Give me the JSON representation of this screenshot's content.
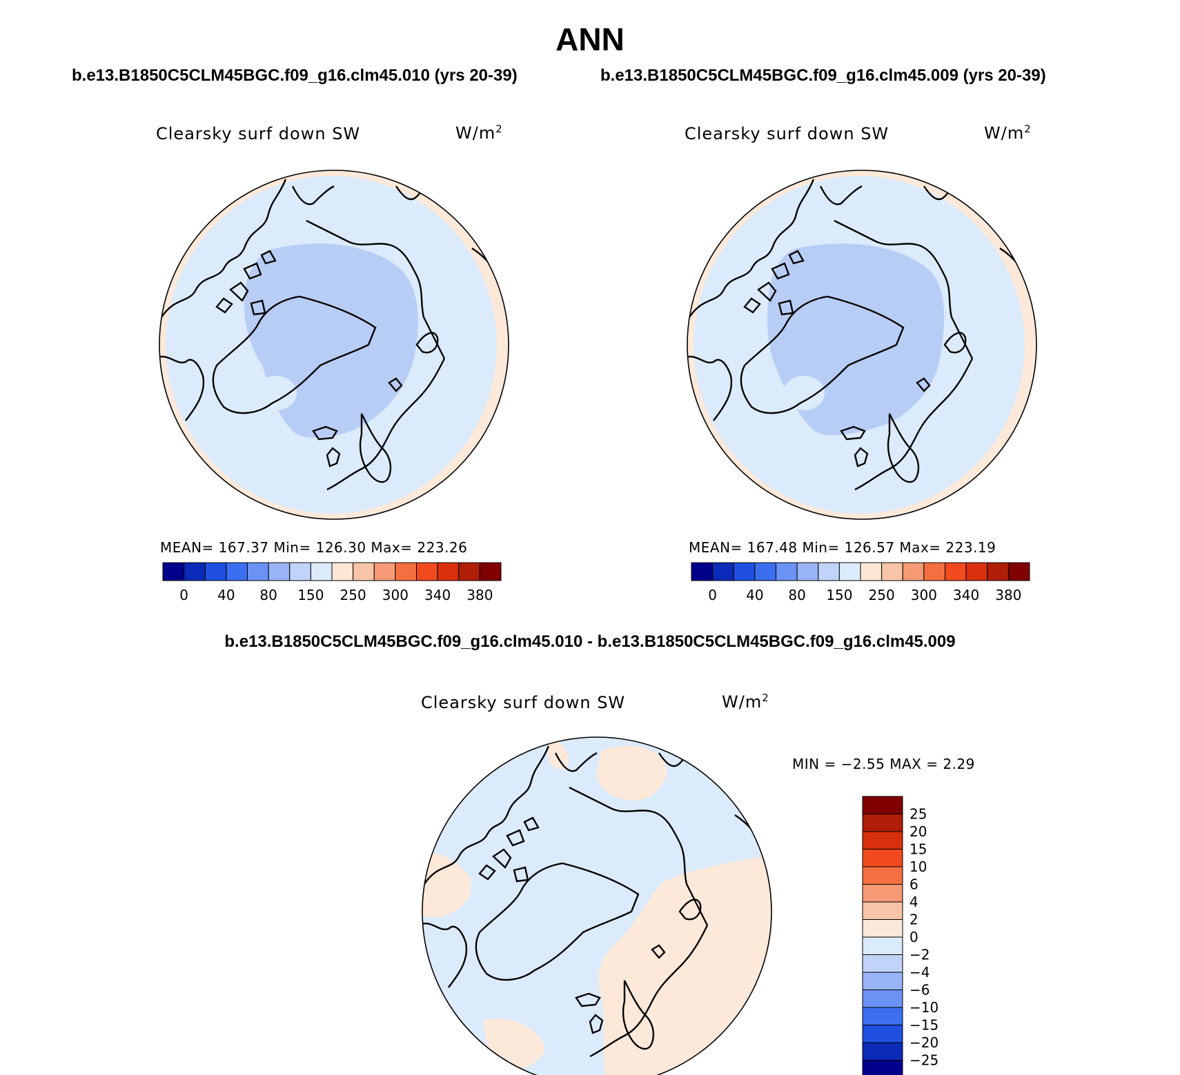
{
  "title": "ANN",
  "panels": [
    {
      "case_title": "b.e13.B1850C5CLM45BGC.f09_g16.clm45.010 (yrs 20-39)",
      "variable": "Clearsky surf down SW",
      "units_base": "W/m",
      "units_exp": "2",
      "stats": "MEAN= 167.37   Min= 126.30   Max= 223.26",
      "colorbar_labels": [
        "0",
        "40",
        "80",
        "150",
        "250",
        "300",
        "340",
        "380"
      ]
    },
    {
      "case_title": "b.e13.B1850C5CLM45BGC.f09_g16.clm45.009 (yrs 20-39)",
      "variable": "Clearsky surf down SW",
      "units_base": "W/m",
      "units_exp": "2",
      "stats": "MEAN= 167.48   Min= 126.57   Max= 223.19",
      "colorbar_labels": [
        "0",
        "40",
        "80",
        "150",
        "250",
        "300",
        "340",
        "380"
      ]
    }
  ],
  "difference": {
    "title": "b.e13.B1850C5CLM45BGC.f09_g16.clm45.010 - b.e13.B1850C5CLM45BGC.f09_g16.clm45.009",
    "variable": "Clearsky surf down SW",
    "units_base": "W/m",
    "units_exp": "2",
    "minmax": "MIN =  −2.55 MAX =    2.29",
    "colorbar_labels": [
      "25",
      "20",
      "15",
      "10",
      "6",
      "4",
      "2",
      "0",
      "−2",
      "−4",
      "−6",
      "−10",
      "−15",
      "−20",
      "−25"
    ]
  },
  "colors": {
    "field_colorbar": [
      "#00008b",
      "#0a2ab8",
      "#1f4fe0",
      "#3b6ff0",
      "#6b93f5",
      "#98b4f7",
      "#c2d3f9",
      "#dcebfb",
      "#fde6d6",
      "#f8c4a8",
      "#f59a74",
      "#f57040",
      "#f04a1e",
      "#d8300c",
      "#b01e08",
      "#800000"
    ],
    "diff_colorbar": [
      "#800000",
      "#b01e08",
      "#d8300c",
      "#f04a1e",
      "#f57040",
      "#f59a74",
      "#f8c4a8",
      "#fde9d9",
      "#dcebfb",
      "#c2d3f9",
      "#98b4f7",
      "#6b93f5",
      "#3b6ff0",
      "#1f4fe0",
      "#0a2ab8",
      "#00008b"
    ],
    "map_outer": "#fde9d9",
    "map_mid": "#dcebfb",
    "map_inner": "#b8cdf5"
  }
}
